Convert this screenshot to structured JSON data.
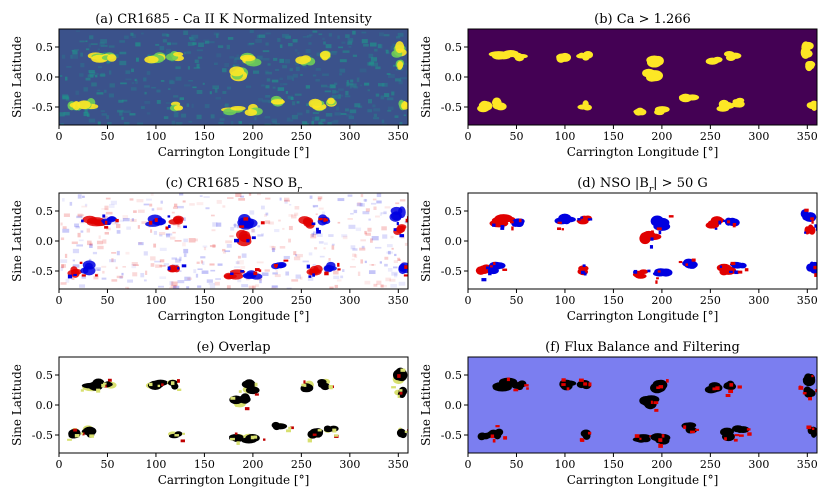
{
  "figure": {
    "shared": {
      "xlabel": "Carrington Longitude [°]",
      "ylabel": "Sine Latitude",
      "x_ticks": [
        0,
        50,
        100,
        150,
        200,
        250,
        300,
        350
      ],
      "y_ticks": [
        0.5,
        0.0,
        -0.5
      ],
      "xlim": [
        0,
        360
      ],
      "ylim": [
        -0.8,
        0.8
      ]
    },
    "panels": [
      {
        "id": "a",
        "title": "(a) CR1685 - Ca II K Normalized Intensity"
      },
      {
        "id": "b",
        "title": "(b) Ca > 1.266"
      },
      {
        "id": "c",
        "title": "(c) CR1685 - NSO B",
        "title_sub": "r"
      },
      {
        "id": "d",
        "title": "(d) NSO |B",
        "title_sub": "r",
        "title_tail": "| > 50 G"
      },
      {
        "id": "e",
        "title": "(e) Overlap"
      },
      {
        "id": "f",
        "title": "(f) Flux Balance and Filtering"
      }
    ]
  },
  "chart_data": [
    {
      "type": "heatmap",
      "panel": "a",
      "title": "(a) CR1685 - Ca II K Normalized Intensity",
      "xlabel": "Carrington Longitude [°]",
      "ylabel": "Sine Latitude",
      "xlim": [
        0,
        360
      ],
      "ylim": [
        -0.8,
        0.8
      ],
      "colormap": "viridis"
    },
    {
      "type": "heatmap",
      "panel": "b",
      "title": "(b) Ca > 1.266",
      "xlabel": "Carrington Longitude [°]",
      "ylabel": "Sine Latitude",
      "xlim": [
        0,
        360
      ],
      "ylim": [
        -0.8,
        0.8
      ],
      "threshold": 1.266
    },
    {
      "type": "heatmap",
      "panel": "c",
      "title": "(c) CR1685 - NSO Br",
      "xlabel": "Carrington Longitude [°]",
      "ylabel": "Sine Latitude",
      "xlim": [
        0,
        360
      ],
      "ylim": [
        -0.8,
        0.8
      ],
      "colormap": "bwr"
    },
    {
      "type": "heatmap",
      "panel": "d",
      "title": "(d) NSO |Br| > 50 G",
      "xlabel": "Carrington Longitude [°]",
      "ylabel": "Sine Latitude",
      "xlim": [
        0,
        360
      ],
      "ylim": [
        -0.8,
        0.8
      ],
      "threshold_G": 50
    },
    {
      "type": "heatmap",
      "panel": "e",
      "title": "(e) Overlap",
      "xlabel": "Carrington Longitude [°]",
      "ylabel": "Sine Latitude",
      "xlim": [
        0,
        360
      ],
      "ylim": [
        -0.8,
        0.8
      ]
    },
    {
      "type": "heatmap",
      "panel": "f",
      "title": "(f) Flux Balance and Filtering",
      "xlabel": "Carrington Longitude [°]",
      "ylabel": "Sine Latitude",
      "xlim": [
        0,
        360
      ],
      "ylim": [
        -0.8,
        0.8
      ]
    }
  ],
  "colors": {
    "viridis_low": "#3b528b",
    "viridis_high": "#fde725",
    "viridis_floor": "#440154",
    "positive": "#e00000",
    "negative": "#0000e0",
    "overlap": "#000000",
    "overlap_edge": "#d8e070",
    "filter_bg": "#7b7ef0"
  },
  "regions": [
    {
      "lon": 38,
      "lat": 0.34,
      "rx": 13,
      "ry": 0.1,
      "pol": 1
    },
    {
      "lon": 52,
      "lat": 0.33,
      "rx": 8,
      "ry": 0.08,
      "pol": -1
    },
    {
      "lon": 100,
      "lat": 0.33,
      "rx": 10,
      "ry": 0.1,
      "pol": -1
    },
    {
      "lon": 120,
      "lat": 0.35,
      "rx": 8,
      "ry": 0.08,
      "pol": 1
    },
    {
      "lon": 188,
      "lat": 0.05,
      "rx": 11,
      "ry": 0.12,
      "pol": 1
    },
    {
      "lon": 196,
      "lat": 0.3,
      "rx": 12,
      "ry": 0.12,
      "pol": -1
    },
    {
      "lon": 255,
      "lat": 0.3,
      "rx": 9,
      "ry": 0.1,
      "pol": 1
    },
    {
      "lon": 272,
      "lat": 0.35,
      "rx": 8,
      "ry": 0.09,
      "pol": -1
    },
    {
      "lon": 350,
      "lat": 0.45,
      "rx": 8,
      "ry": 0.14,
      "pol": -1
    },
    {
      "lon": 352,
      "lat": 0.2,
      "rx": 6,
      "ry": 0.1,
      "pol": 1
    },
    {
      "lon": 17,
      "lat": -0.5,
      "rx": 8,
      "ry": 0.1,
      "pol": 1
    },
    {
      "lon": 30,
      "lat": -0.45,
      "rx": 9,
      "ry": 0.1,
      "pol": -1
    },
    {
      "lon": 120,
      "lat": -0.48,
      "rx": 7,
      "ry": 0.08,
      "pol": 1
    },
    {
      "lon": 180,
      "lat": -0.55,
      "rx": 10,
      "ry": 0.08,
      "pol": 1
    },
    {
      "lon": 200,
      "lat": -0.55,
      "rx": 10,
      "ry": 0.09,
      "pol": -1
    },
    {
      "lon": 228,
      "lat": -0.38,
      "rx": 9,
      "ry": 0.09,
      "pol": -1
    },
    {
      "lon": 265,
      "lat": -0.48,
      "rx": 10,
      "ry": 0.1,
      "pol": 1
    },
    {
      "lon": 280,
      "lat": -0.42,
      "rx": 8,
      "ry": 0.08,
      "pol": -1
    },
    {
      "lon": 355,
      "lat": -0.45,
      "rx": 6,
      "ry": 0.1,
      "pol": -1
    }
  ]
}
